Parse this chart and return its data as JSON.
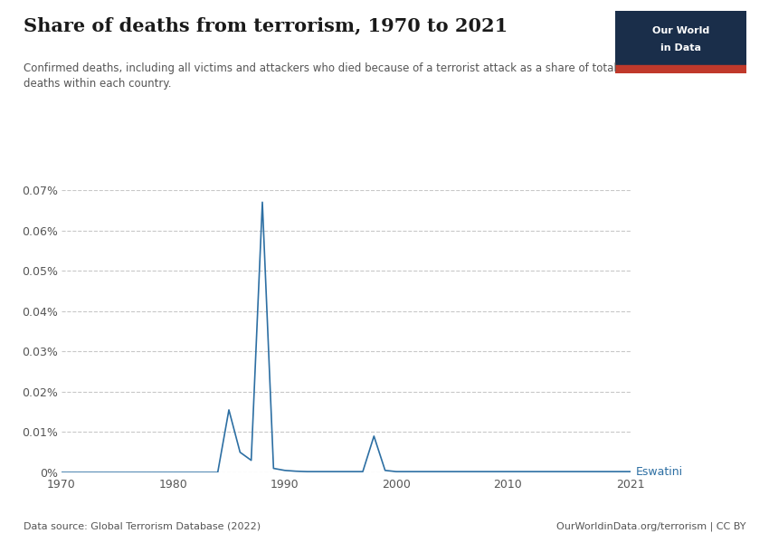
{
  "title": "Share of deaths from terrorism, 1970 to 2021",
  "subtitle": "Confirmed deaths, including all victims and attackers who died because of a terrorist attack as a share of total\ndeaths within each country.",
  "data_source": "Data source: Global Terrorism Database (2022)",
  "url": "OurWorldinData.org/terrorism | CC BY",
  "country_label": "Eswatini",
  "line_color": "#2d6fa3",
  "background_color": "#ffffff",
  "grid_color": "#c8c8c8",
  "title_color": "#1a1a1a",
  "subtitle_color": "#555555",
  "logo_bg": "#1a2e4a",
  "logo_red": "#c0392b",
  "years": [
    1970,
    1971,
    1972,
    1973,
    1974,
    1975,
    1976,
    1977,
    1978,
    1979,
    1980,
    1981,
    1982,
    1983,
    1984,
    1985,
    1986,
    1987,
    1988,
    1989,
    1990,
    1991,
    1992,
    1993,
    1994,
    1995,
    1996,
    1997,
    1998,
    1999,
    2000,
    2001,
    2002,
    2003,
    2004,
    2005,
    2006,
    2007,
    2008,
    2009,
    2010,
    2011,
    2012,
    2013,
    2014,
    2015,
    2016,
    2017,
    2018,
    2019,
    2020,
    2021
  ],
  "values": [
    0.0,
    0.0,
    0.0,
    0.0,
    0.0,
    0.0,
    0.0,
    0.0,
    0.0,
    0.0,
    0.0,
    0.0,
    0.0,
    0.0,
    0.0,
    0.000155,
    5e-05,
    3e-05,
    0.00067,
    1e-05,
    5e-06,
    3e-06,
    2e-06,
    2e-06,
    2e-06,
    2e-06,
    2e-06,
    2e-06,
    9e-05,
    5e-06,
    2e-06,
    2e-06,
    2e-06,
    2e-06,
    2e-06,
    2e-06,
    2e-06,
    2e-06,
    2e-06,
    2e-06,
    2e-06,
    2e-06,
    2e-06,
    2e-06,
    2e-06,
    2e-06,
    2e-06,
    2e-06,
    2e-06,
    2e-06,
    2e-06,
    2e-06
  ],
  "ylim_max": 0.0007,
  "yticks": [
    0.0,
    0.0001,
    0.0002,
    0.0003,
    0.0004,
    0.0005,
    0.0006,
    0.0007
  ],
  "ytick_labels": [
    "0%",
    "0.01%",
    "0.02%",
    "0.03%",
    "0.04%",
    "0.05%",
    "0.06%",
    "0.07%"
  ],
  "xticks": [
    1970,
    1980,
    1990,
    2000,
    2010,
    2021
  ]
}
